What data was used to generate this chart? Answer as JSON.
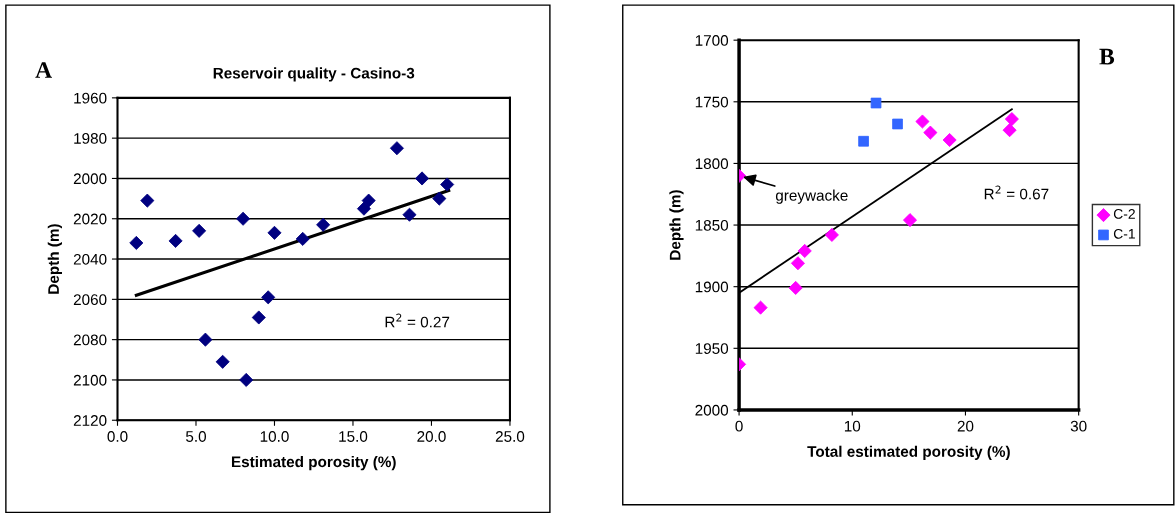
{
  "chart_data": [
    {
      "type": "scatter",
      "title": "Reservoir quality - Casino-3",
      "xlabel": "Estimated porosity (%)",
      "ylabel": "Depth (m)",
      "xlim": [
        0,
        25
      ],
      "xticks": [
        {
          "value": 0,
          "label": "0.0"
        },
        {
          "value": 5,
          "label": "5.0"
        },
        {
          "value": 10,
          "label": "10.0"
        },
        {
          "value": 15,
          "label": "15.0"
        },
        {
          "value": 20,
          "label": "20.0"
        },
        {
          "value": 25,
          "label": "25.0"
        }
      ],
      "ylim": [
        2120,
        1960
      ],
      "yticks": [
        1960,
        1980,
        2000,
        2020,
        2040,
        2060,
        2080,
        2100,
        2120
      ],
      "grid": "y",
      "legend": false,
      "series": [
        {
          "color": "#000080",
          "marker": "diamond",
          "x": [
            1.2,
            1.9,
            3.7,
            5.2,
            5.6,
            6.7,
            8.0,
            8.2,
            9.0,
            9.6,
            10.0,
            11.8,
            13.1,
            15.7,
            16.0,
            17.8,
            18.6,
            19.4,
            20.5,
            21.0
          ],
          "values": [
            2032,
            2011,
            2031,
            2026,
            2080,
            2091,
            2020,
            2100,
            2069,
            2059,
            2027,
            2030,
            2023,
            2015,
            2011,
            1985,
            2018,
            2000,
            2010,
            2003
          ]
        },
        {
          "type": "line",
          "color": "#000000",
          "x": [
            1.2,
            21.1
          ],
          "values": [
            2058,
            2006
          ]
        }
      ],
      "annotations": [
        "A",
        "R$^{2}$ = 0.27"
      ]
    },
    {
      "type": "scatter",
      "xlabel": "Total estimated porosity (%)",
      "ylabel": "Depth (m)",
      "xlim": [
        0,
        30
      ],
      "xticks": [
        0,
        10,
        20,
        30
      ],
      "ylim": [
        2000,
        1700
      ],
      "yticks": [
        1700,
        1750,
        1800,
        1850,
        1900,
        1950,
        2000
      ],
      "grid": "y",
      "legend": "right",
      "series": [
        {
          "name": "C-2",
          "color": "#ff00ff",
          "marker": "diamond",
          "x": [
            0,
            0,
            1.9,
            5.0,
            5.2,
            5.8,
            8.2,
            15.1,
            16.2,
            16.9,
            18.6,
            23.9,
            24.1
          ],
          "values": [
            1810,
            1963,
            1917,
            1901,
            1881,
            1871,
            1858,
            1846,
            1766,
            1775,
            1781,
            1773,
            1764
          ]
        },
        {
          "name": "C-1",
          "color": "#3366ff",
          "marker": "square",
          "x": [
            12.1,
            14.0,
            11.0
          ],
          "values": [
            1751,
            1768,
            1782
          ]
        },
        {
          "type": "line",
          "color": "#000000",
          "x": [
            0,
            24.1
          ],
          "values": [
            1905,
            1756
          ]
        }
      ],
      "annotations": [
        "B",
        {
          "text": "greywacke",
          "x": 0,
          "y": 1810
        },
        "R$^{2}$ = 0.67"
      ]
    }
  ]
}
